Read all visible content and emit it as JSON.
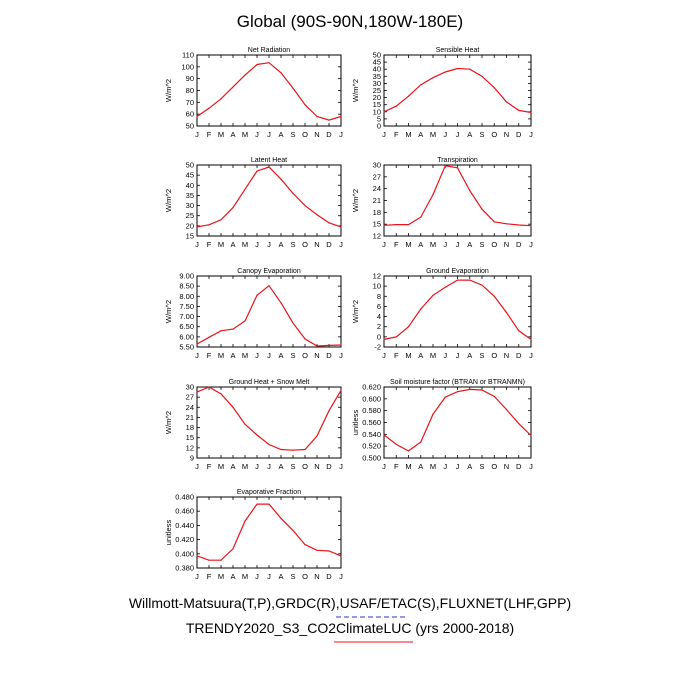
{
  "figure": {
    "title": "Global (90S-90N,180W-180E)",
    "caption_line1": "Willmott-Matsuura(T,P),GRDC(R),USAF/ETAC(S),FLUXNET(LHF,GPP)",
    "caption_line2": "TRENDY2020_S3_CO2ClimateLUC (yrs 2000-2018)",
    "line_color": "#e8141b",
    "underline1_color": "#3030c0",
    "underline2_color": "#e8141b"
  },
  "chart_data": [
    {
      "type": "line",
      "title": "Net Radiation",
      "ylabel": "W/m^2",
      "x": [
        "J",
        "F",
        "M",
        "A",
        "M",
        "J",
        "J",
        "A",
        "S",
        "O",
        "N",
        "D",
        "J"
      ],
      "ylim": [
        50,
        110
      ],
      "yticks": [
        "50",
        "60",
        "70",
        "80",
        "90",
        "100",
        "110"
      ],
      "series": [
        {
          "values": [
            58,
            65,
            73,
            83,
            93,
            102,
            103.5,
            95,
            82,
            68,
            58,
            55,
            58
          ]
        }
      ]
    },
    {
      "type": "line",
      "title": "Sensible Heat",
      "ylabel": "W/m^2",
      "x": [
        "J",
        "F",
        "M",
        "A",
        "M",
        "J",
        "J",
        "A",
        "S",
        "O",
        "N",
        "D",
        "J"
      ],
      "ylim": [
        0,
        50
      ],
      "yticks": [
        "0",
        "5",
        "10",
        "15",
        "20",
        "25",
        "30",
        "35",
        "40",
        "45",
        "50"
      ],
      "series": [
        {
          "values": [
            10,
            14,
            21,
            29,
            34,
            38,
            40.5,
            40,
            35,
            27,
            17,
            11,
            9.5
          ]
        }
      ]
    },
    {
      "type": "line",
      "title": "Latent Heat",
      "ylabel": "W/m^2",
      "x": [
        "J",
        "F",
        "M",
        "A",
        "M",
        "J",
        "J",
        "A",
        "S",
        "O",
        "N",
        "D",
        "J"
      ],
      "ylim": [
        15,
        50
      ],
      "yticks": [
        "15",
        "20",
        "25",
        "30",
        "35",
        "40",
        "45",
        "50"
      ],
      "series": [
        {
          "values": [
            19.5,
            20.5,
            23,
            29,
            38,
            47,
            49,
            43,
            36,
            30,
            25.5,
            21.5,
            19.5
          ]
        }
      ]
    },
    {
      "type": "line",
      "title": "Transpiration",
      "ylabel": "W/m^2",
      "x": [
        "J",
        "F",
        "M",
        "A",
        "M",
        "J",
        "J",
        "A",
        "S",
        "O",
        "N",
        "D",
        "J"
      ],
      "ylim": [
        12,
        30
      ],
      "yticks": [
        "12",
        "15",
        "18",
        "21",
        "24",
        "27",
        "30"
      ],
      "series": [
        {
          "values": [
            14.7,
            14.9,
            14.9,
            16.8,
            22.5,
            29.8,
            29.3,
            23.5,
            18.8,
            15.6,
            15.1,
            14.8,
            14.6
          ]
        }
      ]
    },
    {
      "type": "line",
      "title": "Canopy Evaporation",
      "ylabel": "W/m^2",
      "x": [
        "J",
        "F",
        "M",
        "A",
        "M",
        "J",
        "J",
        "A",
        "S",
        "O",
        "N",
        "D",
        "J"
      ],
      "ylim": [
        5.5,
        9.0
      ],
      "yticks": [
        "5.50",
        "6.00",
        "6.50",
        "7.00",
        "7.50",
        "8.00",
        "8.50",
        "9.00"
      ],
      "series": [
        {
          "values": [
            5.65,
            5.98,
            6.3,
            6.38,
            6.78,
            8.05,
            8.52,
            7.68,
            6.68,
            5.9,
            5.55,
            5.58,
            5.6
          ]
        }
      ]
    },
    {
      "type": "line",
      "title": "Ground Evaporation",
      "ylabel": "W/m^2",
      "x": [
        "J",
        "F",
        "M",
        "A",
        "M",
        "J",
        "J",
        "A",
        "S",
        "O",
        "N",
        "D",
        "J"
      ],
      "ylim": [
        -2,
        12
      ],
      "yticks": [
        "-2",
        "0",
        "2",
        "4",
        "6",
        "8",
        "10",
        "12"
      ],
      "series": [
        {
          "values": [
            -0.5,
            0,
            2,
            5.5,
            8.2,
            9.8,
            11.2,
            11.2,
            10.2,
            8,
            4.8,
            1.2,
            -0.5
          ]
        }
      ]
    },
    {
      "type": "line",
      "title": "Ground Heat + Snow Melt",
      "ylabel": "W/m^2",
      "x": [
        "J",
        "F",
        "M",
        "A",
        "M",
        "J",
        "J",
        "A",
        "S",
        "O",
        "N",
        "D",
        "J"
      ],
      "ylim": [
        9,
        30
      ],
      "yticks": [
        "9",
        "12",
        "15",
        "18",
        "21",
        "24",
        "27",
        "30"
      ],
      "series": [
        {
          "values": [
            28.5,
            30,
            28,
            24,
            19,
            15.8,
            13,
            11.5,
            11.3,
            11.5,
            15.5,
            23,
            29
          ]
        }
      ]
    },
    {
      "type": "line",
      "title": "Soil moisture factor (BTRAN or BTRANMN)",
      "ylabel": "unitless",
      "x": [
        "J",
        "F",
        "M",
        "A",
        "M",
        "J",
        "J",
        "A",
        "S",
        "O",
        "N",
        "D",
        "J"
      ],
      "ylim": [
        0.5,
        0.62
      ],
      "yticks": [
        "0.500",
        "0.520",
        "0.540",
        "0.560",
        "0.580",
        "0.600",
        "0.620"
      ],
      "series": [
        {
          "values": [
            0.539,
            0.523,
            0.512,
            0.527,
            0.574,
            0.603,
            0.612,
            0.616,
            0.615,
            0.604,
            0.582,
            0.558,
            0.538
          ]
        }
      ]
    },
    {
      "type": "line",
      "title": "Evaporative Fraction",
      "ylabel": "unitless",
      "x": [
        "J",
        "F",
        "M",
        "A",
        "M",
        "J",
        "J",
        "A",
        "S",
        "O",
        "N",
        "D",
        "J"
      ],
      "ylim": [
        0.38,
        0.48
      ],
      "yticks": [
        "0.380",
        "0.400",
        "0.420",
        "0.440",
        "0.460",
        "0.480"
      ],
      "series": [
        {
          "values": [
            0.397,
            0.391,
            0.391,
            0.407,
            0.446,
            0.47,
            0.47,
            0.45,
            0.433,
            0.413,
            0.405,
            0.404,
            0.397
          ]
        }
      ]
    }
  ]
}
